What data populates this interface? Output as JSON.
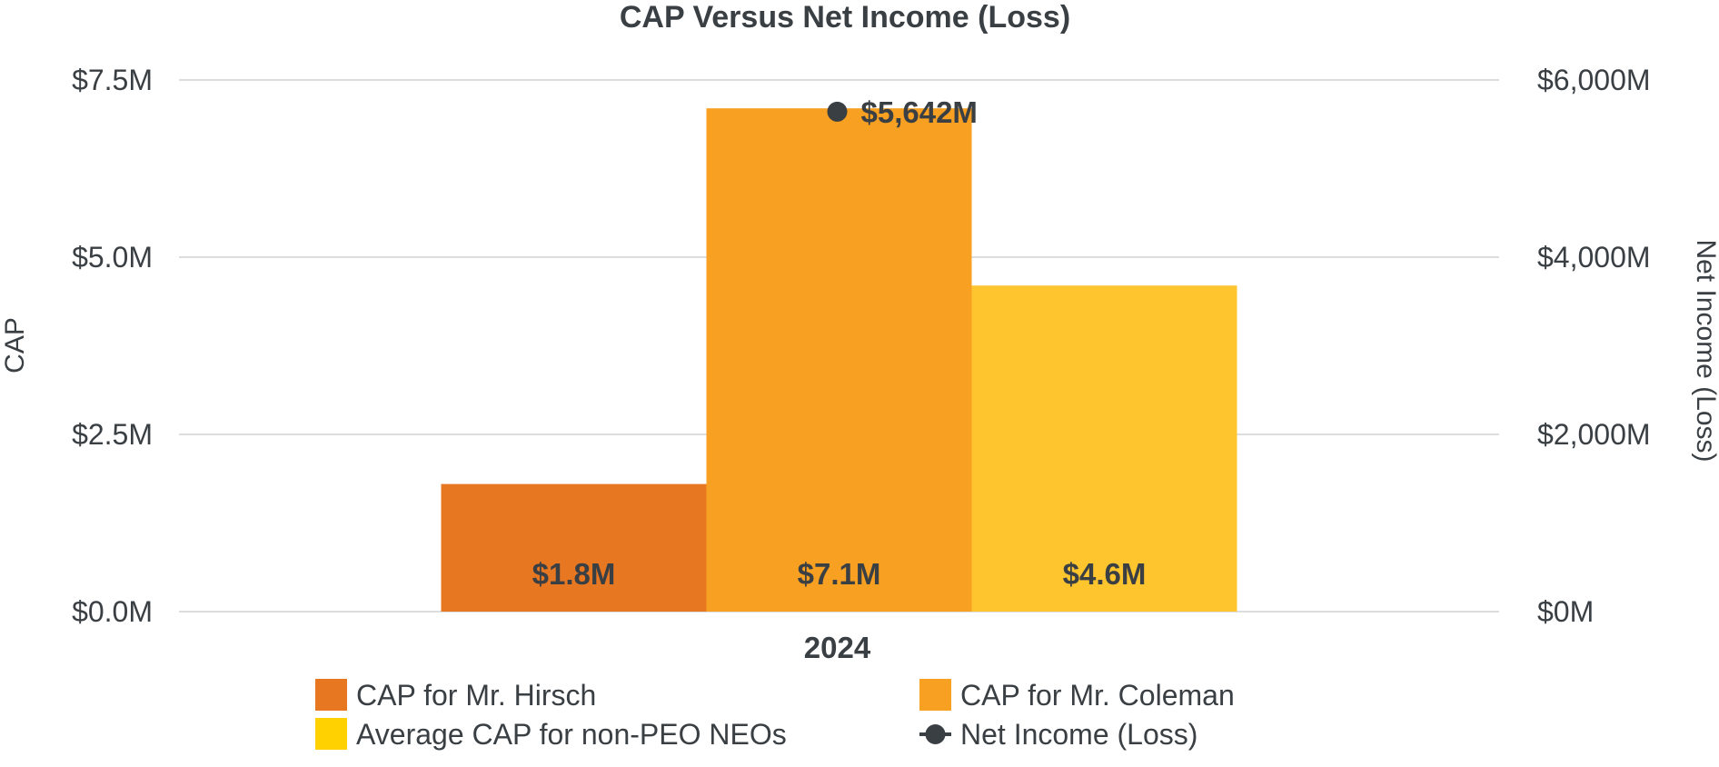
{
  "chart_data": {
    "type": "bar",
    "title": "CAP Versus Net Income (Loss)",
    "categories": [
      "2024"
    ],
    "ylabel": "CAP",
    "y2label": "Net Income (Loss)",
    "ylim": [
      0,
      7.5
    ],
    "y2lim": [
      0,
      6000
    ],
    "yticks": [
      "$0.0M",
      "$2.5M",
      "$5.0M",
      "$7.5M"
    ],
    "y2ticks": [
      "$0M",
      "$2,000M",
      "$4,000M",
      "$6,000M"
    ],
    "grid": true,
    "legend_position": "bottom",
    "series": [
      {
        "name": "CAP for Mr. Hirsch",
        "values": [
          1.8
        ],
        "labels": [
          "$1.8M"
        ],
        "color": "#e87722"
      },
      {
        "name": "CAP for Mr. Coleman",
        "values": [
          7.1
        ],
        "labels": [
          "$7.1M"
        ],
        "color": "#f7a021"
      },
      {
        "name": "Average CAP for non-PEO NEOs",
        "values": [
          4.6
        ],
        "labels": [
          "$4.6M"
        ],
        "color": "#fec52e"
      }
    ],
    "line_series": {
      "name": "Net Income (Loss)",
      "axis": "right",
      "values": [
        5642
      ],
      "labels": [
        "$5,642M"
      ],
      "color": "#3a3f44"
    },
    "legend_colors": [
      "#e87722",
      "#f7a021",
      "#ffd100",
      "#3a3f44"
    ]
  }
}
